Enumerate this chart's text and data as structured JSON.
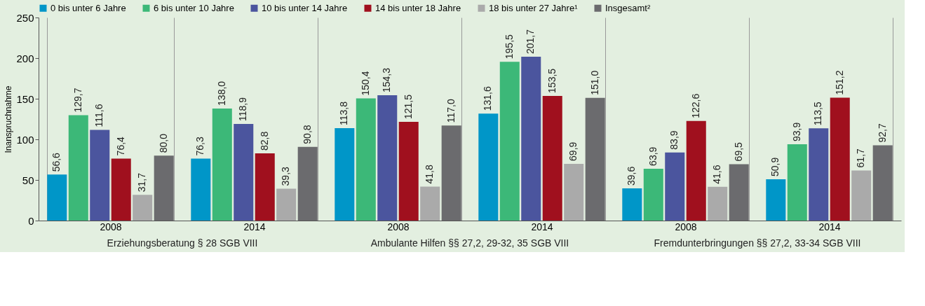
{
  "chart_data": {
    "type": "bar",
    "ylabel": "Inanspruchnahme",
    "categories": [
      "2008",
      "2014",
      "2008",
      "2014",
      "2008",
      "2014"
    ],
    "annotations": [
      "Erziehungsberatung § 28 SGB VIII",
      "Ambulante Hilfen §§ 27,2, 29-32, 35 SGB VIII",
      "Fremdunterbringungen §§ 27,2, 33-34 SGB VIII"
    ],
    "ylim": [
      0,
      250
    ],
    "yticks": [
      0,
      50,
      100,
      150,
      200,
      250
    ],
    "grid": "x",
    "legend": "top",
    "series": [
      {
        "name": "0 bis unter 6 Jahre",
        "color": "#0096c8",
        "values": [
          56.6,
          76.3,
          113.8,
          131.6,
          39.6,
          50.9
        ],
        "value_labels": [
          "56,6",
          "76,3",
          "113,8",
          "131,6",
          "39,6",
          "50,9"
        ]
      },
      {
        "name": "6 bis unter 10 Jahre",
        "color": "#3cb878",
        "values": [
          129.7,
          138.0,
          150.4,
          195.5,
          63.9,
          93.9
        ],
        "value_labels": [
          "129,7",
          "138,0",
          "150,4",
          "195,5",
          "63,9",
          "93,9"
        ]
      },
      {
        "name": "10 bis unter 14 Jahre",
        "color": "#4b559e",
        "values": [
          111.6,
          118.9,
          154.3,
          201.7,
          83.9,
          113.5
        ],
        "value_labels": [
          "111,6",
          "118,9",
          "154,3",
          "201,7",
          "83,9",
          "113,5"
        ]
      },
      {
        "name": "14 bis unter 18 Jahre",
        "color": "#a0101e",
        "values": [
          76.4,
          82.8,
          121.5,
          153.5,
          122.6,
          151.2
        ],
        "value_labels": [
          "76,4",
          "82,8",
          "121,5",
          "153,5",
          "122,6",
          "151,2"
        ]
      },
      {
        "name": "18 bis unter 27 Jahre¹",
        "color": "#aaaaaa",
        "values": [
          31.7,
          39.3,
          41.8,
          69.9,
          41.6,
          61.7
        ],
        "value_labels": [
          "31,7",
          "39,3",
          "41,8",
          "69,9",
          "41,6",
          "61,7"
        ]
      },
      {
        "name": "Insgesamt²",
        "color": "#6b6b6e",
        "values": [
          80.0,
          90.8,
          117.0,
          151.0,
          69.5,
          92.7
        ],
        "value_labels": [
          "80,0",
          "90,8",
          "117,0",
          "151,0",
          "69,5",
          "92,7"
        ]
      }
    ]
  }
}
